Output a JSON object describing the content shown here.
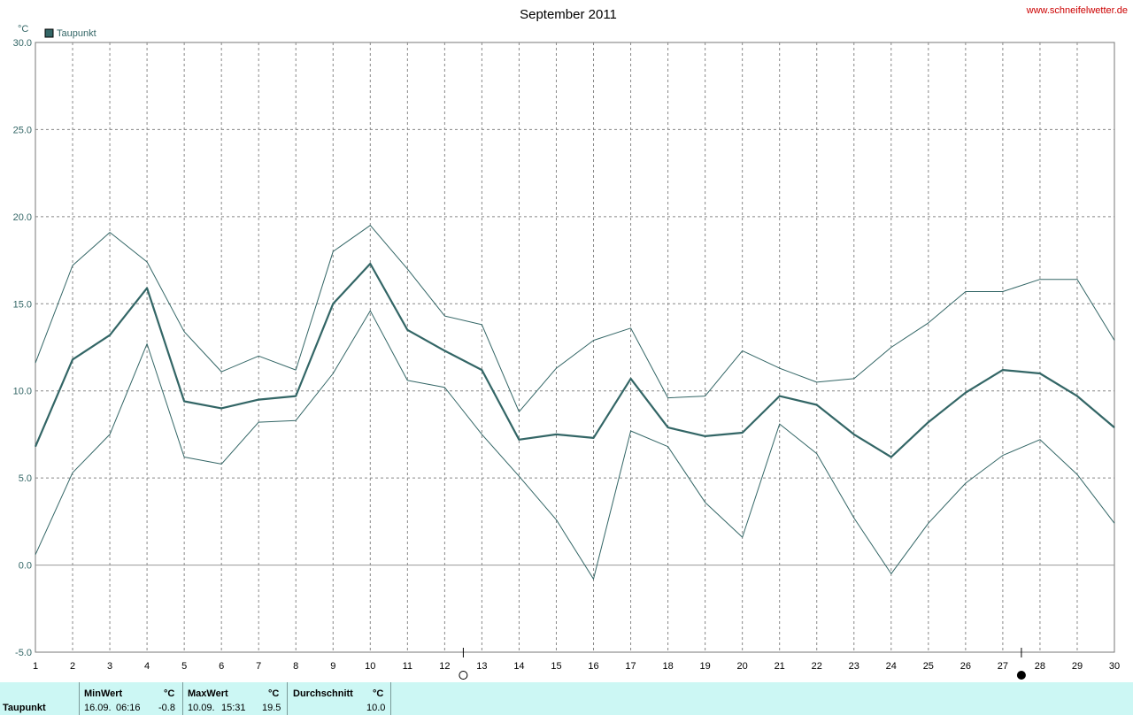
{
  "site": "www.schneifelwetter.de",
  "chart_data": {
    "type": "line",
    "title": "September 2011",
    "ylabel": "°C",
    "ylim": [
      -5,
      30
    ],
    "yticks": [
      "-5.0",
      "0.0",
      "5.0",
      "10.0",
      "15.0",
      "20.0",
      "25.0",
      "30.0"
    ],
    "x": [
      1,
      2,
      3,
      4,
      5,
      6,
      7,
      8,
      9,
      10,
      11,
      12,
      13,
      14,
      15,
      16,
      17,
      18,
      19,
      20,
      21,
      22,
      23,
      24,
      25,
      26,
      27,
      28,
      29,
      30
    ],
    "grid": true,
    "legend": "top-left",
    "moon_phases": [
      {
        "day": 12.5,
        "symbol": "full"
      },
      {
        "day": 27.5,
        "symbol": "new"
      }
    ],
    "series": [
      {
        "name": "Taupunkt",
        "role": "mean",
        "color": "#336666",
        "values": [
          6.8,
          11.8,
          13.2,
          15.9,
          9.4,
          9.0,
          9.5,
          9.7,
          15.0,
          17.3,
          13.5,
          12.3,
          11.2,
          7.2,
          7.5,
          7.3,
          10.7,
          7.9,
          7.4,
          7.6,
          9.7,
          9.2,
          7.5,
          6.2,
          8.2,
          9.9,
          11.2,
          11.0,
          9.7,
          7.9
        ]
      },
      {
        "role": "max",
        "color": "#336666",
        "values": [
          11.6,
          17.2,
          19.1,
          17.4,
          13.4,
          11.1,
          12.0,
          11.2,
          18.0,
          19.5,
          17.0,
          14.3,
          13.8,
          8.8,
          11.3,
          12.9,
          13.6,
          9.6,
          9.7,
          12.3,
          11.3,
          10.5,
          10.7,
          12.5,
          13.9,
          15.7,
          15.7,
          16.4,
          16.4,
          12.9
        ]
      },
      {
        "role": "min",
        "color": "#336666",
        "values": [
          0.6,
          5.3,
          7.5,
          12.7,
          6.2,
          5.8,
          8.2,
          8.3,
          11.0,
          14.6,
          10.6,
          10.2,
          7.5,
          5.1,
          2.6,
          -0.8,
          7.7,
          6.8,
          3.6,
          1.6,
          8.1,
          6.4,
          2.7,
          -0.5,
          2.4,
          4.7,
          6.3,
          7.2,
          5.2,
          2.4
        ]
      }
    ]
  },
  "footer": {
    "row_label": "Taupunkt",
    "min": {
      "header": "MinWert",
      "unit": "°C",
      "date": "16.09.",
      "time": "06:16",
      "value": "-0.8"
    },
    "max": {
      "header": "MaxWert",
      "unit": "°C",
      "date": "10.09.",
      "time": "15:31",
      "value": "19.5"
    },
    "avg": {
      "header": "Durchschnitt",
      "unit": "°C",
      "value": "10.0"
    }
  }
}
